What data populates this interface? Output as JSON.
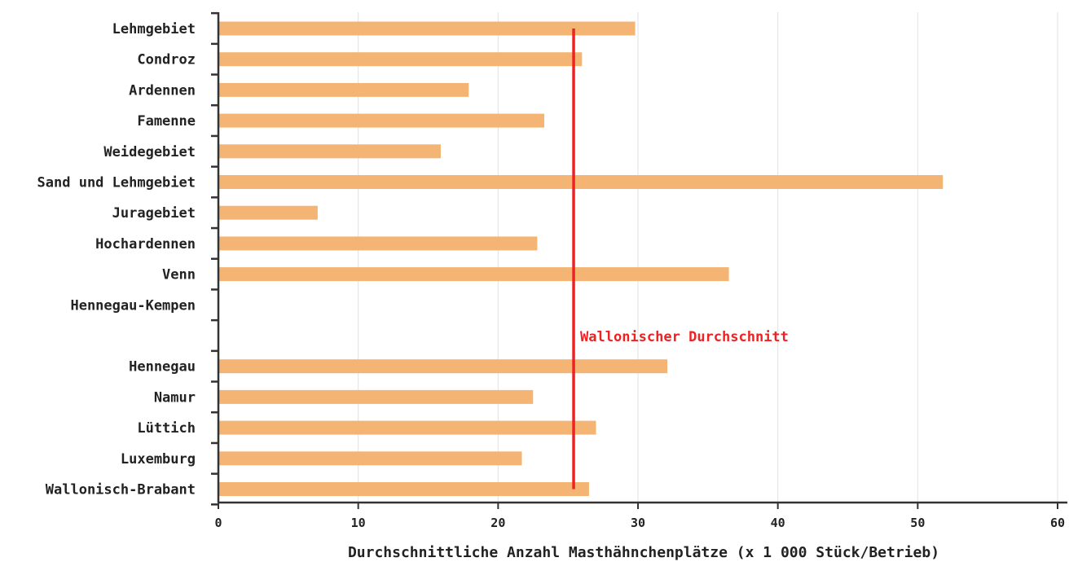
{
  "chart_data": {
    "type": "bar",
    "orientation": "horizontal",
    "categories": [
      "Lehmgebiet",
      "Condroz",
      "Ardennen",
      "Famenne",
      "Weidegebiet",
      "Sand und Lehmgebiet",
      "Juragebiet",
      "Hochardennen",
      "Venn",
      "Hennegau-Kempen",
      "",
      "Hennegau",
      "Namur",
      "Lüttich",
      "Luxemburg",
      "Wallonisch-Brabant"
    ],
    "values": [
      29.8,
      26.0,
      17.9,
      23.3,
      15.9,
      51.8,
      7.1,
      22.8,
      36.5,
      null,
      null,
      32.1,
      22.5,
      27.0,
      21.7,
      26.5
    ],
    "title": "",
    "xlabel": "Durchschnittliche Anzahl Masthähnchenplätze (x 1 000 Stück/Betrieb)",
    "ylabel": "",
    "xlim": [
      0,
      60
    ],
    "xticks": [
      0,
      10,
      20,
      30,
      40,
      50,
      60
    ],
    "grid": "vertical",
    "bar_color": "#f4b574",
    "reference_line": {
      "label": "Wallonischer Durchschnitt",
      "value": 25.4,
      "color": "#ee2222"
    },
    "legend": "none"
  }
}
